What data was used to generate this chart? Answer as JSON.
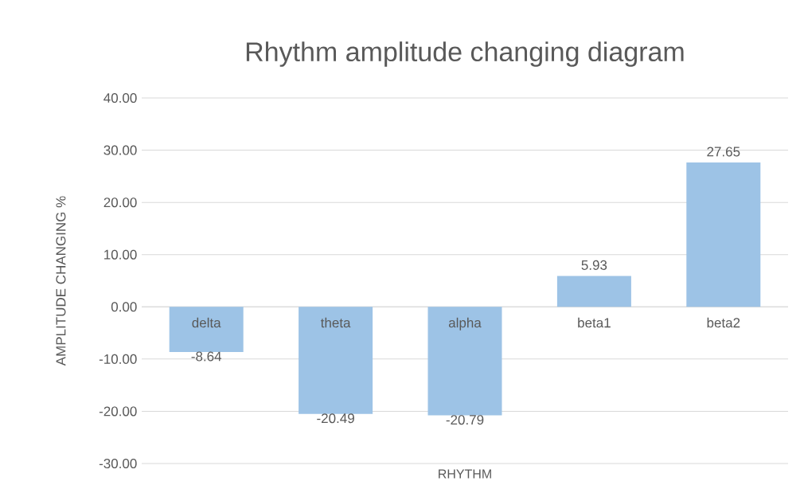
{
  "chart_data": {
    "type": "bar",
    "title": "Rhythm amplitude changing diagram",
    "xlabel": "RHYTHM",
    "ylabel": "AMPLITUDE CHANGING  %",
    "categories": [
      "delta",
      "theta",
      "alpha",
      "beta1",
      "beta2"
    ],
    "values": [
      -8.64,
      -20.49,
      -20.79,
      5.93,
      27.65
    ],
    "color": "#9dc3e6",
    "ylim": [
      -30,
      40
    ],
    "yticks": [
      {
        "value": -30,
        "label": "-30.00"
      },
      {
        "value": -20,
        "label": "-20.00"
      },
      {
        "value": -10,
        "label": "-10.00"
      },
      {
        "value": 0,
        "label": "0.00"
      },
      {
        "value": 10,
        "label": "10.00"
      },
      {
        "value": 20,
        "label": "20.00"
      },
      {
        "value": 30,
        "label": "30.00"
      },
      {
        "value": 40,
        "label": "40.00"
      }
    ],
    "grid": "y",
    "data_labels": true
  }
}
